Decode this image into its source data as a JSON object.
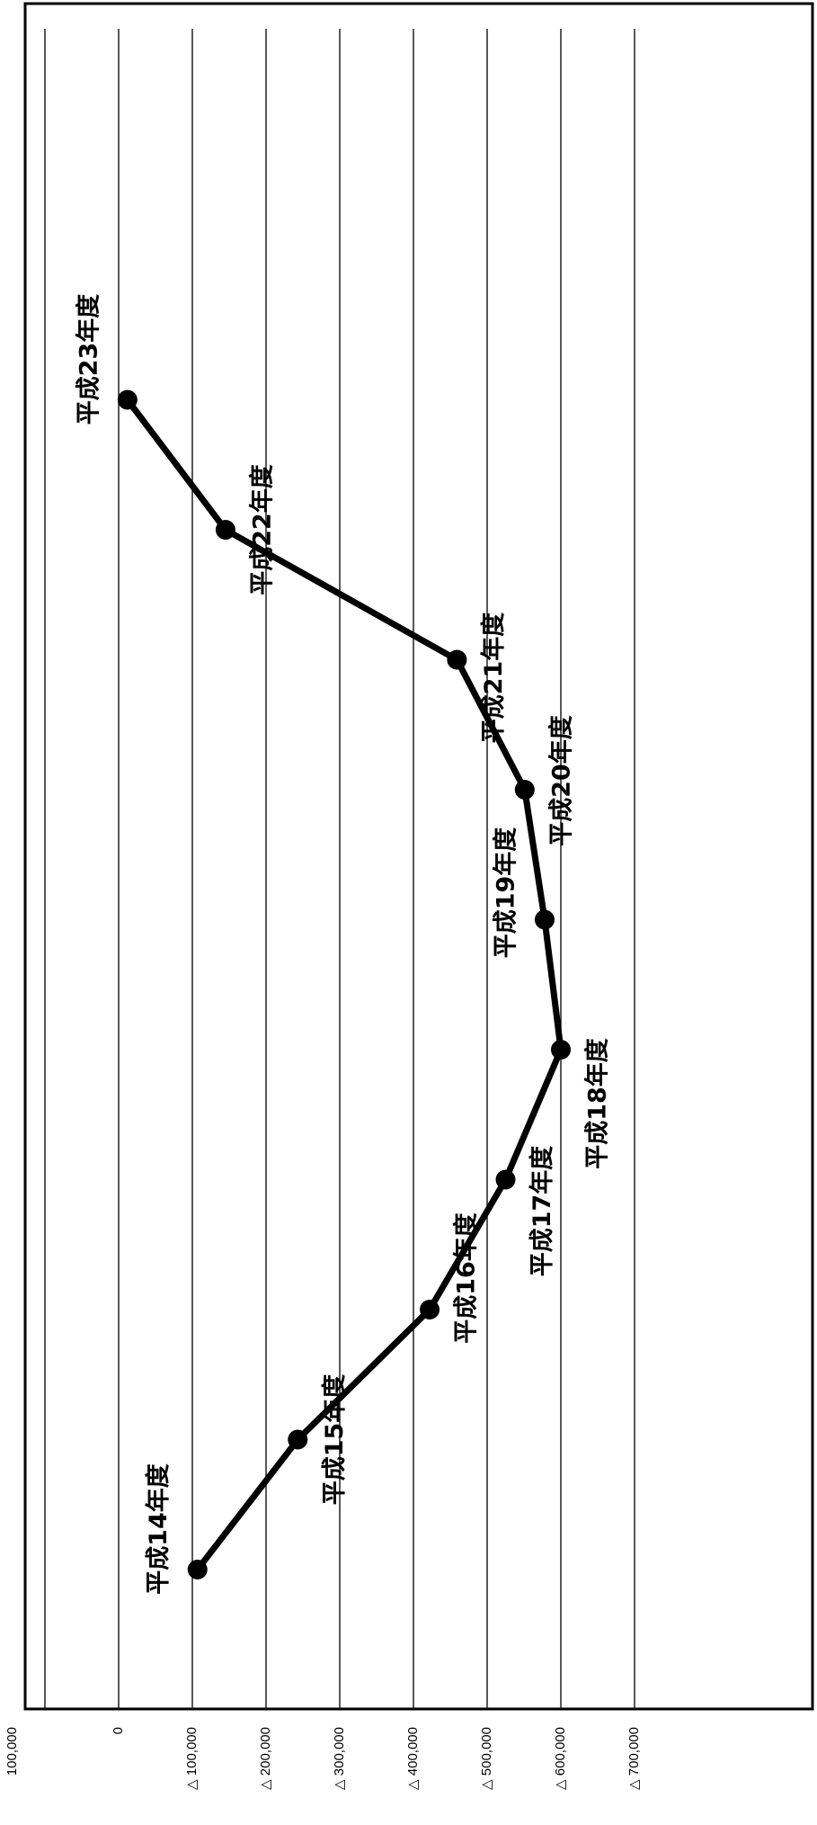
{
  "chart_data": {
    "type": "line",
    "orientation": "rotated-90",
    "title": "",
    "xlabel": "",
    "ylabel": "",
    "grid": true,
    "legend": "none",
    "value_axis": {
      "range": [
        -700000,
        100000
      ],
      "ticks": [
        {
          "value": 100000,
          "label": "100,000"
        },
        {
          "value": 0,
          "label": "0"
        },
        {
          "value": -100000,
          "label": "△ 100,000"
        },
        {
          "value": -200000,
          "label": "△ 200,000"
        },
        {
          "value": -300000,
          "label": "△ 300,000"
        },
        {
          "value": -400000,
          "label": "△ 400,000"
        },
        {
          "value": -500000,
          "label": "△ 500,000"
        },
        {
          "value": -600000,
          "label": "△ 600,000"
        },
        {
          "value": -700000,
          "label": "△ 700,000"
        }
      ]
    },
    "points": [
      {
        "label": "平成14年度",
        "value": -107000
      },
      {
        "label": "平成15年度",
        "value": -243000
      },
      {
        "label": "平成16年度",
        "value": -422000
      },
      {
        "label": "平成17年度",
        "value": -525000
      },
      {
        "label": "平成18年度",
        "value": -600000
      },
      {
        "label": "平成19年度",
        "value": -578000
      },
      {
        "label": "平成20年度",
        "value": -551000
      },
      {
        "label": "平成21年度",
        "value": -459000
      },
      {
        "label": "平成22年度",
        "value": -145000
      },
      {
        "label": "平成23年度",
        "value": -12000
      }
    ],
    "line_color": "#000000",
    "grid_color": "#111111"
  }
}
